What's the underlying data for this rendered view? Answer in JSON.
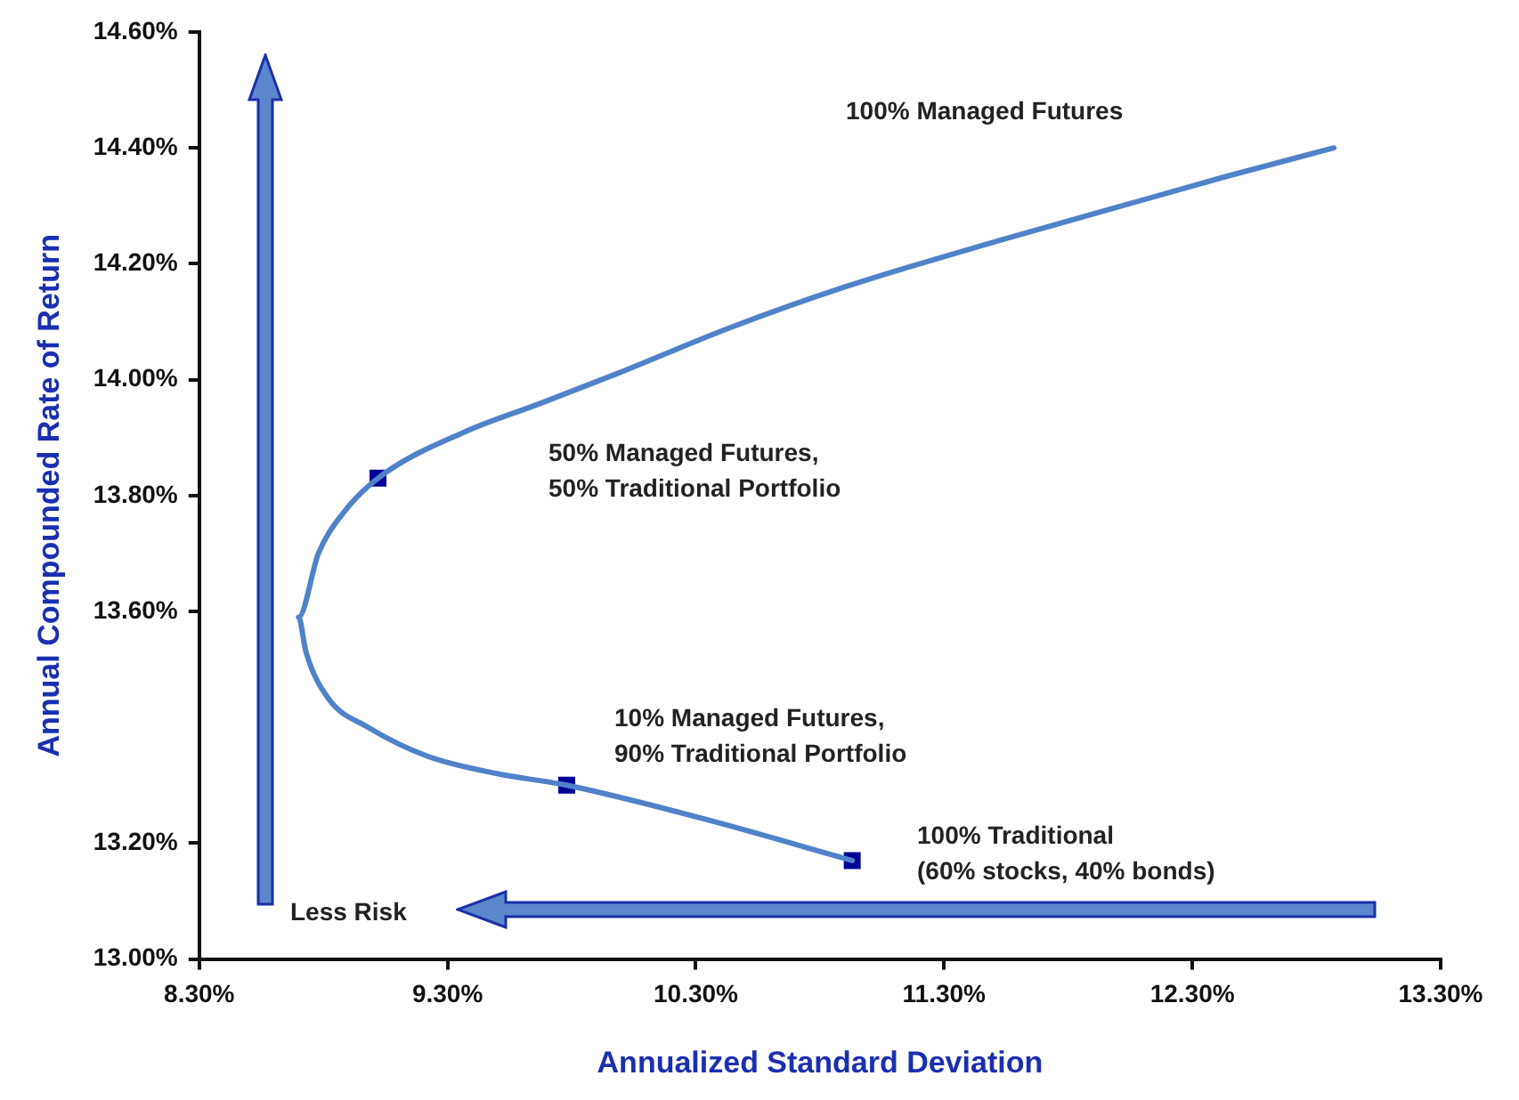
{
  "chart_data": {
    "type": "line",
    "xlabel": "Annualized Standard Deviation",
    "ylabel": "Annual Compounded Rate of Return",
    "xlim": [
      8.3,
      13.3
    ],
    "ylim": [
      13.0,
      14.6
    ],
    "xticks": [
      {
        "value": 8.3,
        "label": "8.30%"
      },
      {
        "value": 9.3,
        "label": "9.30%"
      },
      {
        "value": 10.3,
        "label": "10.30%"
      },
      {
        "value": 11.3,
        "label": "11.30%"
      },
      {
        "value": 12.3,
        "label": "12.30%"
      },
      {
        "value": 13.3,
        "label": "13.30%"
      }
    ],
    "yticks": [
      {
        "value": 14.6,
        "label": "14.60%"
      },
      {
        "value": 14.4,
        "label": "14.40%"
      },
      {
        "value": 14.2,
        "label": "14.20%"
      },
      {
        "value": 14.0,
        "label": "14.00%"
      },
      {
        "value": 13.8,
        "label": "13.80%"
      },
      {
        "value": 13.6,
        "label": "13.60%"
      },
      {
        "value": 13.2,
        "label": "13.20%"
      },
      {
        "value": 13.0,
        "label": "13.00%"
      }
    ],
    "grid": false,
    "legend": false,
    "series": [
      {
        "color": "#4f82c8",
        "marker": "none",
        "x": [
          12.87,
          12.43,
          11.52,
          10.9,
          10.44,
          9.98,
          9.68,
          9.37,
          9.02,
          8.88,
          8.78,
          8.7,
          8.73,
          8.82,
          8.98,
          9.22,
          9.5,
          9.78,
          10.35,
          10.93
        ],
        "values": [
          14.4,
          14.35,
          14.24,
          14.16,
          14.09,
          14.01,
          13.96,
          13.91,
          13.83,
          13.77,
          13.7,
          13.59,
          13.53,
          13.45,
          13.4,
          13.35,
          13.32,
          13.3,
          13.24,
          13.17
        ]
      },
      {
        "type": "scatter",
        "color": "#000099",
        "marker": "square",
        "x": [
          9.02,
          9.78,
          10.93
        ],
        "values": [
          13.83,
          13.3,
          13.17
        ]
      }
    ],
    "annotations": [
      "100% Managed Futures",
      "50% Managed Futures,\n50% Traditional Portfolio",
      "10% Managed Futures,\n90% Traditional Portfolio",
      "100% Traditional\n(60% stocks, 40% bonds)",
      "Less Risk"
    ]
  }
}
